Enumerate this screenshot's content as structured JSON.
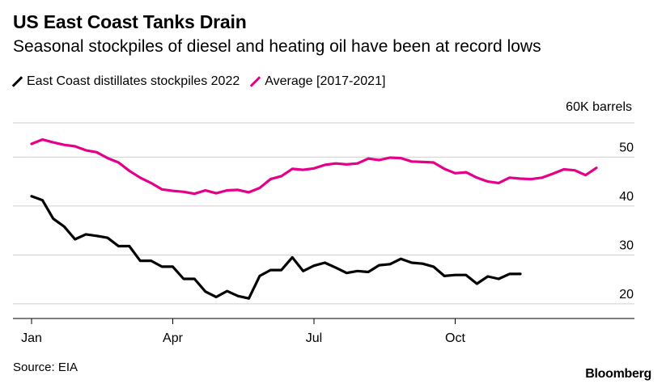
{
  "chart_data": {
    "type": "line",
    "title": "US East Coast Tanks Drain",
    "subtitle": "Seasonal stockpiles of diesel and heating oil have been at record lows",
    "unit_label": "60K barrels",
    "ylim": [
      17,
      57
    ],
    "yticks": [
      "50",
      "40",
      "30",
      "20"
    ],
    "ytick_values": [
      50,
      40,
      30,
      20
    ],
    "xlim": [
      1,
      53
    ],
    "xticks": [
      "Jan",
      "Apr",
      "Jul",
      "Oct"
    ],
    "xtick_weeks": [
      1,
      14,
      27,
      40
    ],
    "grid": true,
    "legend_position": "top-left",
    "series": [
      {
        "name": "East Coast distillates stockpiles 2022",
        "color": "#000000",
        "weeks": [
          1,
          2,
          3,
          4,
          5,
          6,
          7,
          8,
          9,
          10,
          11,
          12,
          13,
          14,
          15,
          16,
          17,
          18,
          19,
          20,
          21,
          22,
          23,
          24,
          25,
          26,
          27,
          28,
          29,
          30,
          31,
          32,
          33,
          34,
          35,
          36,
          37,
          38,
          39,
          40,
          41,
          42,
          43,
          44,
          45,
          46
        ],
        "values": [
          42.0,
          41.2,
          37.4,
          35.8,
          33.2,
          34.2,
          33.9,
          33.5,
          31.8,
          31.8,
          28.8,
          28.8,
          27.6,
          27.6,
          25.1,
          25.1,
          22.5,
          21.4,
          22.6,
          21.6,
          21.1,
          25.7,
          26.9,
          26.9,
          29.5,
          26.7,
          27.8,
          28.4,
          27.4,
          26.3,
          26.7,
          26.5,
          27.9,
          28.1,
          29.2,
          28.4,
          28.2,
          27.6,
          25.7,
          25.9,
          25.9,
          24.1,
          25.6,
          25.1,
          26.1,
          26.1
        ]
      },
      {
        "name": "Average [2017-2021]",
        "color": "#e5008a",
        "weeks": [
          1,
          2,
          3,
          4,
          5,
          6,
          7,
          8,
          9,
          10,
          11,
          12,
          13,
          14,
          15,
          16,
          17,
          18,
          19,
          20,
          21,
          22,
          23,
          24,
          25,
          26,
          27,
          28,
          29,
          30,
          31,
          32,
          33,
          34,
          35,
          36,
          37,
          38,
          39,
          40,
          41,
          42,
          43,
          44,
          45,
          46,
          47,
          48,
          49,
          50,
          51,
          52,
          53
        ],
        "values": [
          52.7,
          53.6,
          53.0,
          52.5,
          52.2,
          51.4,
          51.0,
          49.8,
          48.9,
          47.2,
          45.8,
          44.7,
          43.4,
          43.1,
          42.9,
          42.5,
          43.2,
          42.6,
          43.2,
          43.3,
          42.8,
          43.7,
          45.5,
          46.1,
          47.6,
          47.4,
          47.7,
          48.4,
          48.7,
          48.5,
          48.7,
          49.7,
          49.4,
          49.9,
          49.8,
          49.1,
          49.0,
          48.9,
          47.6,
          46.7,
          46.9,
          45.8,
          45.0,
          44.7,
          45.8,
          45.6,
          45.5,
          45.8,
          46.6,
          47.5,
          47.3,
          46.3,
          47.8
        ]
      }
    ]
  },
  "legend": {
    "items": [
      {
        "label": "East Coast distillates stockpiles 2022",
        "color": "#000000"
      },
      {
        "label": "Average [2017-2021]",
        "color": "#e5008a"
      }
    ]
  },
  "footer": {
    "source": "Source: EIA",
    "brand": "Bloomberg"
  }
}
